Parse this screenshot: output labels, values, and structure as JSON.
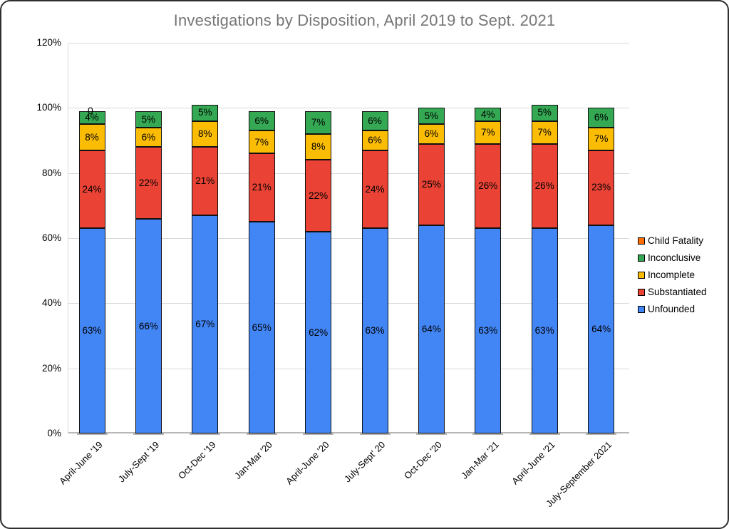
{
  "chart_data": {
    "type": "bar",
    "stacked": true,
    "title": "Investigations by Disposition, April 2019 to Sept. 2021",
    "xlabel": "",
    "ylabel": "",
    "ylim": [
      0,
      120
    ],
    "grid": true,
    "y_ticks": [
      "0%",
      "20%",
      "40%",
      "60%",
      "80%",
      "100%",
      "120%"
    ],
    "value_suffix": "%",
    "categories": [
      "April-June '19",
      "July-Sept '19",
      "Oct-Dec '19",
      "Jan-Mar '20",
      "April-June '20",
      "July-Sept' 20",
      "Oct-Dec '20",
      "Jan-Mar '21",
      "April-June '21",
      "July-September 2021"
    ],
    "series": [
      {
        "name": "Unfounded",
        "color": "#4285f4",
        "values": [
          63,
          66,
          67,
          65,
          62,
          63,
          64,
          63,
          63,
          64
        ]
      },
      {
        "name": "Substantiated",
        "color": "#ea4335",
        "values": [
          24,
          22,
          21,
          21,
          22,
          24,
          25,
          26,
          26,
          23
        ]
      },
      {
        "name": "Incomplete",
        "color": "#fbbc04",
        "values": [
          8,
          6,
          8,
          7,
          8,
          6,
          6,
          7,
          7,
          7
        ]
      },
      {
        "name": "Inconclusive",
        "color": "#34a853",
        "values": [
          4,
          5,
          5,
          6,
          7,
          6,
          5,
          4,
          5,
          6
        ]
      },
      {
        "name": "Child Fatality",
        "color": "#ff6d01",
        "values": [
          0,
          0,
          0,
          0,
          0,
          0,
          0,
          0,
          0,
          0
        ]
      }
    ],
    "annotations": [
      {
        "category": "April-June '19",
        "series": "Child Fatality",
        "text": "0"
      }
    ],
    "legend_position": "right",
    "legend": [
      {
        "label": "Child Fatality",
        "color": "#ff6d01"
      },
      {
        "label": "Inconclusive",
        "color": "#34a853"
      },
      {
        "label": "Incomplete",
        "color": "#fbbc04"
      },
      {
        "label": "Substantiated",
        "color": "#ea4335"
      },
      {
        "label": "Unfounded",
        "color": "#4285f4"
      }
    ],
    "colors": {
      "title_text": "#757575",
      "gridline": "#d9d9d9",
      "axis_baseline": "#b7b7b7",
      "bar_border": "#111111",
      "label_text": "#000000"
    }
  }
}
